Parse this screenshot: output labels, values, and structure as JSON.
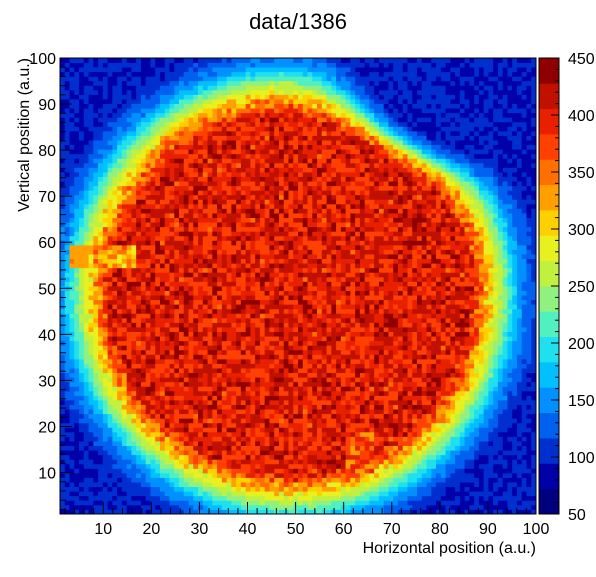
{
  "chart_data": {
    "type": "heatmap",
    "title": "data/1386",
    "xlabel": "Horizontal position (a.u.)",
    "ylabel": "Vertical position (a.u.)",
    "xlim": [
      1,
      100
    ],
    "ylim": [
      1,
      100
    ],
    "x_ticks": [
      10,
      20,
      30,
      40,
      50,
      60,
      70,
      80,
      90,
      100
    ],
    "y_ticks": [
      10,
      20,
      30,
      40,
      50,
      60,
      70,
      80,
      90,
      100
    ],
    "colorbar": {
      "range": [
        50,
        450
      ],
      "ticks": [
        50,
        100,
        150,
        200,
        250,
        300,
        350,
        400,
        450
      ],
      "colors": [
        "#00007f",
        "#0000a8",
        "#002fd0",
        "#0060f0",
        "#0090ff",
        "#00c0ff",
        "#20e0f0",
        "#50f0c0",
        "#90f080",
        "#c0f040",
        "#e8f020",
        "#ffd000",
        "#ffa000",
        "#ff7000",
        "#ff4000",
        "#e82000",
        "#c01000",
        "#900000"
      ]
    },
    "grid": false,
    "legend": "colorbar-right",
    "regions": [
      {
        "shape": "background",
        "value": 95
      },
      {
        "shape": "main-blob",
        "value": 400,
        "edge_falloff": "outer ring ~150-300"
      },
      {
        "shape": "upper-right notch",
        "value": 150
      },
      {
        "shape": "left band",
        "x": [
          3,
          17
        ],
        "y": [
          54,
          59
        ],
        "value": 330
      },
      {
        "shape": "bottom bump",
        "x": [
          60,
          66
        ],
        "y": [
          10,
          25
        ],
        "value": 360
      }
    ]
  }
}
